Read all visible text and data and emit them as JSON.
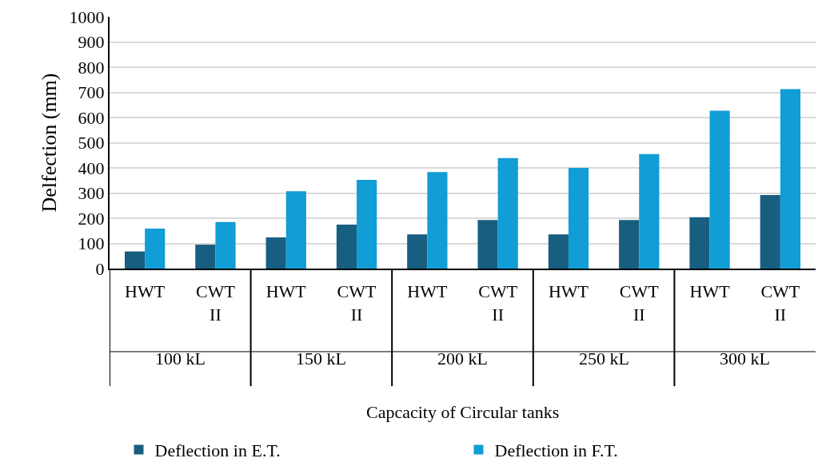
{
  "chart_data": {
    "type": "bar",
    "xlabel": "Capcacity of Circular tanks",
    "ylabel": "Delfection (mm)",
    "categories": [
      "HWT",
      "CWT II",
      "HWT",
      "CWT II",
      "HWT",
      "CWT II",
      "HWT",
      "CWT II",
      "HWT",
      "CWT II"
    ],
    "series": [
      {
        "name": "Deflection in E.T.",
        "color": "#175e80",
        "values": [
          68,
          95,
          124,
          175,
          136,
          193,
          136,
          193,
          204,
          292
        ]
      },
      {
        "name": "Deflection in F.T.",
        "color": "#119dd5",
        "values": [
          159,
          185,
          307,
          352,
          383,
          439,
          400,
          455,
          627,
          713
        ]
      }
    ],
    "annotations": [
      "100 kL",
      "150 kL",
      "200 kL",
      "250 kL",
      "300 kL"
    ],
    "ylim": [
      0,
      1000
    ],
    "yticks": [
      0,
      100,
      200,
      300,
      400,
      500,
      600,
      700,
      800,
      900,
      1000
    ],
    "grid": "y",
    "legend": "bottom"
  }
}
